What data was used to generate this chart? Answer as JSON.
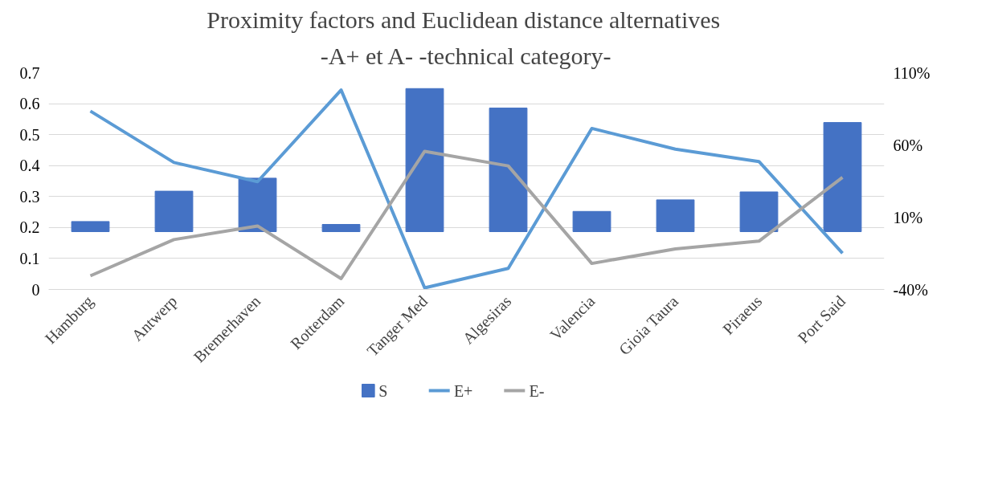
{
  "chart_data": {
    "type": "bar",
    "title": "Proximity factors and  Euclidean distance alternatives",
    "subtitle": "-A+ et A- -technical category-",
    "categories": [
      "Hamburg",
      "Antwerp",
      "Bremerhaven",
      "Rotterdam",
      "Tanger Med",
      "Algesiras",
      "Valencia",
      "Gioia Taura",
      "Piraeus",
      "Port Said"
    ],
    "series": [
      {
        "name": "S",
        "axis": "y2",
        "color": "#4472c4",
        "values": [
          7,
          28,
          37,
          5,
          99,
          85.5,
          14,
          22,
          27.5,
          75.5
        ]
      },
      {
        "name": "E+",
        "type": "line",
        "color": "#5b9bd5",
        "values": [
          0.576,
          0.41,
          0.348,
          0.644,
          0.005,
          0.068,
          0.52,
          0.453,
          0.413,
          0.117
        ]
      },
      {
        "name": "E-",
        "type": "line",
        "color": "#a5a5a5",
        "values": [
          0.044,
          0.161,
          0.205,
          0.035,
          0.446,
          0.399,
          0.084,
          0.131,
          0.156,
          0.362
        ]
      }
    ],
    "ylim": [
      0,
      0.7
    ],
    "yticks": [
      0,
      0.1,
      0.2,
      0.3,
      0.4,
      0.5,
      0.6,
      0.7
    ],
    "y2lim": [
      -40,
      110
    ],
    "y2ticks": [
      {
        "value": -40,
        "label": "-40%"
      },
      {
        "value": 10,
        "label": "10%"
      },
      {
        "value": 60,
        "label": "60%"
      },
      {
        "value": 110,
        "label": "110%"
      }
    ],
    "grid": "y",
    "legend": "bottom",
    "line_style": "solid",
    "marker": "none"
  }
}
